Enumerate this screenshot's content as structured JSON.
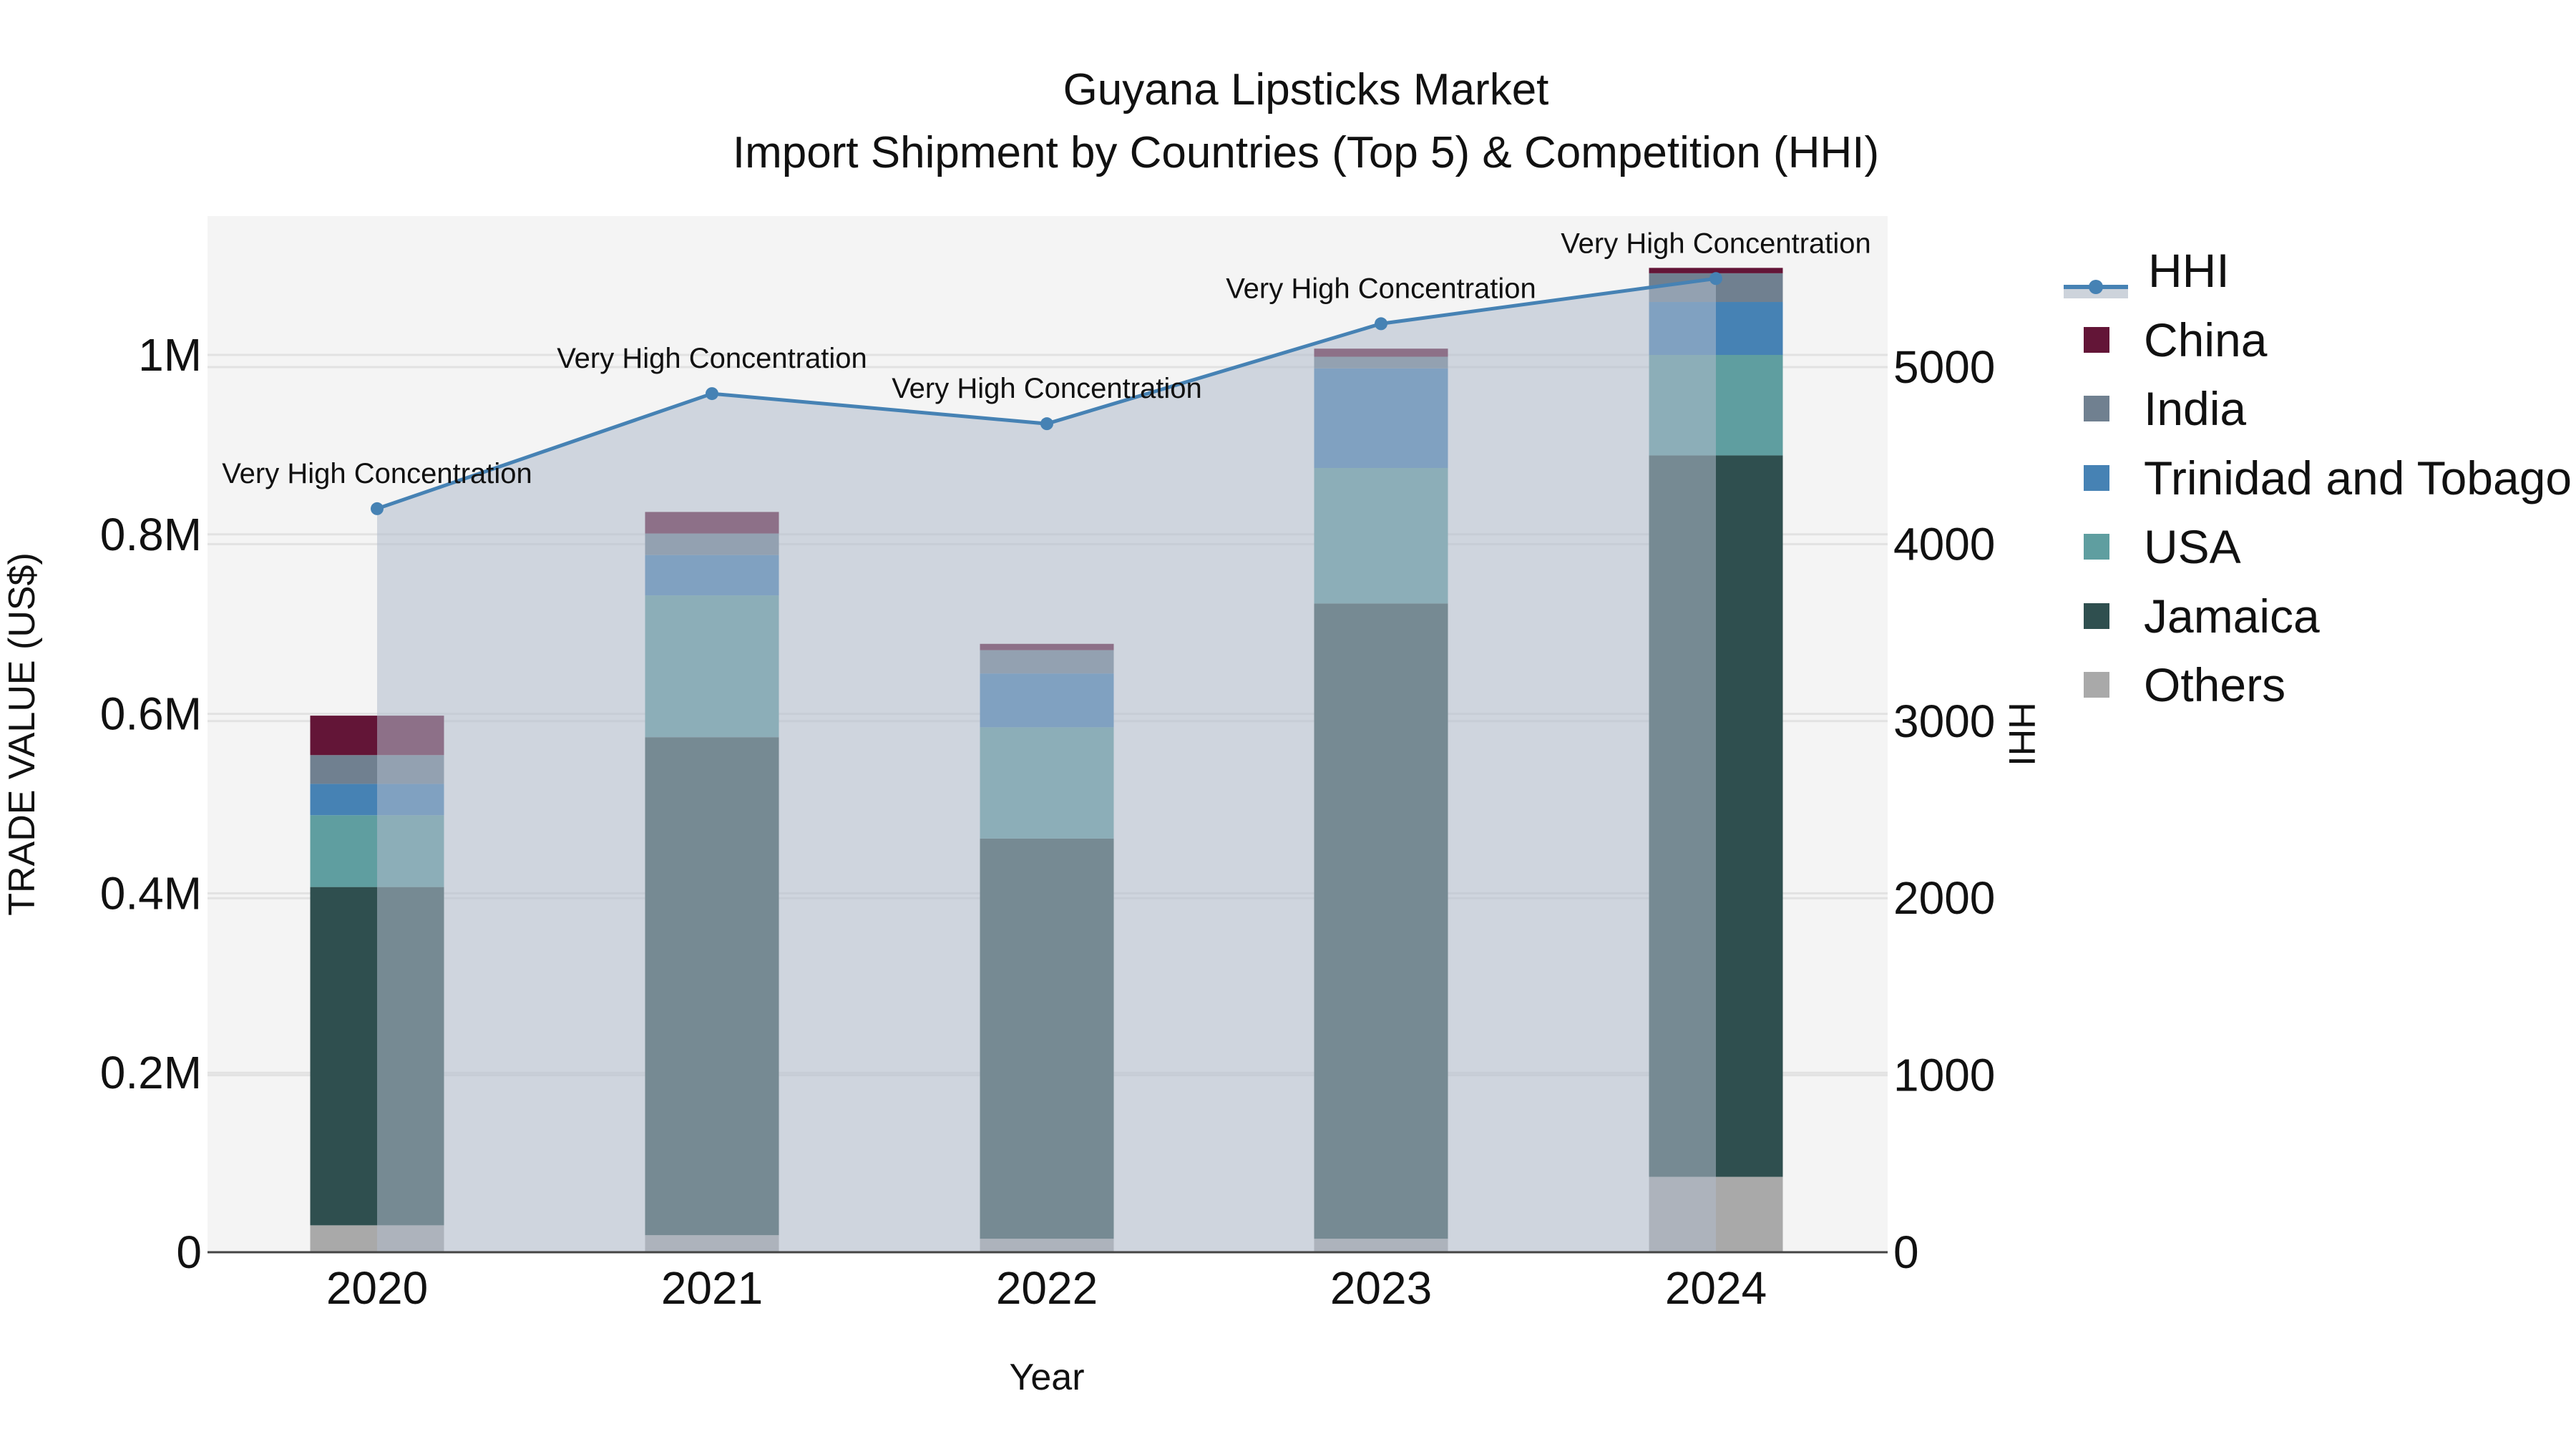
{
  "title": {
    "line1": "Guyana Lipsticks Market",
    "line2": "Import Shipment by Countries (Top 5) & Competition (HHI)"
  },
  "axes": {
    "xlabel": "Year",
    "ylabel_left": "TRADE VALUE (US$)",
    "ylabel_right": "HHI",
    "left_ticks": [
      "0",
      "0.2M",
      "0.4M",
      "0.6M",
      "0.8M",
      "1M"
    ],
    "right_ticks": [
      "0",
      "1000",
      "2000",
      "3000",
      "4000",
      "5000"
    ],
    "x_ticks": [
      "2020",
      "2021",
      "2022",
      "2023",
      "2024"
    ]
  },
  "legend": {
    "items": [
      {
        "label": "HHI",
        "color": "#4682B4",
        "type": "line"
      },
      {
        "label": "China",
        "color": "#631537",
        "type": "bar"
      },
      {
        "label": "India",
        "color": "#708090",
        "type": "bar"
      },
      {
        "label": "Trinidad and Tobago",
        "color": "#4682B4",
        "type": "bar"
      },
      {
        "label": "USA",
        "color": "#5F9EA0",
        "type": "bar"
      },
      {
        "label": "Jamaica",
        "color": "#2F4F4F",
        "type": "bar"
      },
      {
        "label": "Others",
        "color": "#A9A9A9",
        "type": "bar"
      }
    ]
  },
  "annotations": [
    "Very High Concentration",
    "Very High Concentration",
    "Very High Concentration",
    "Very High Concentration",
    "Very High Concentration"
  ],
  "chart_data": {
    "type": "bar",
    "stacked": true,
    "title": "Guyana Lipsticks Market — Import Shipment by Countries (Top 5) & Competition (HHI)",
    "xlabel": "Year",
    "ylabel": "TRADE VALUE (US$)",
    "y2label": "HHI",
    "categories": [
      "2020",
      "2021",
      "2022",
      "2023",
      "2024"
    ],
    "ylim": [
      0,
      1150000
    ],
    "y2lim": [
      0,
      5850
    ],
    "series": [
      {
        "name": "Others",
        "color": "#A9A9A9",
        "values": [
          30000,
          19000,
          15000,
          15000,
          84000
        ]
      },
      {
        "name": "Jamaica",
        "color": "#2F4F4F",
        "values": [
          377000,
          555000,
          446000,
          708000,
          804000
        ]
      },
      {
        "name": "USA",
        "color": "#5F9EA0",
        "values": [
          80000,
          158000,
          124000,
          151000,
          112000
        ]
      },
      {
        "name": "Trinidad and Tobago",
        "color": "#4682B4",
        "values": [
          35000,
          45000,
          60000,
          111000,
          59000
        ]
      },
      {
        "name": "India",
        "color": "#708090",
        "values": [
          32000,
          24000,
          26000,
          13000,
          32000
        ]
      },
      {
        "name": "China",
        "color": "#631537",
        "values": [
          44000,
          24000,
          7000,
          9000,
          6000
        ]
      }
    ],
    "line_series": {
      "name": "HHI",
      "axis": "y2",
      "color": "#4682B4",
      "values": [
        4200,
        4850,
        4680,
        5245,
        5500
      ],
      "labels": [
        "Very High Concentration",
        "Very High Concentration",
        "Very High Concentration",
        "Very High Concentration",
        "Very High Concentration"
      ]
    },
    "grid": true,
    "legend_position": "right"
  }
}
